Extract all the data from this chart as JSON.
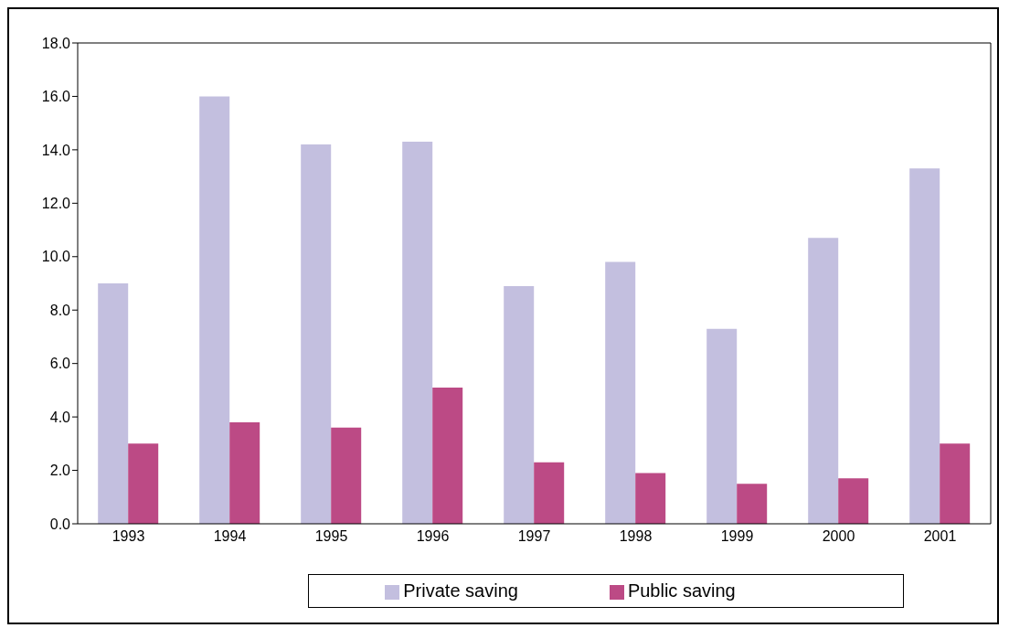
{
  "chart_data": {
    "type": "bar",
    "categories": [
      "1993",
      "1994",
      "1995",
      "1996",
      "1997",
      "1998",
      "1999",
      "2000",
      "2001"
    ],
    "series": [
      {
        "name": "Private saving",
        "color": "#c3bfdf",
        "values": [
          9.0,
          16.0,
          14.2,
          14.3,
          8.9,
          9.8,
          7.3,
          10.7,
          13.3
        ]
      },
      {
        "name": "Public saving",
        "color": "#bc4a85",
        "values": [
          3.0,
          3.8,
          3.6,
          5.1,
          2.3,
          1.9,
          1.5,
          1.7,
          3.0
        ]
      }
    ],
    "ylim": [
      0,
      18
    ],
    "yticks": [
      {
        "value": 0,
        "label": "0.0"
      },
      {
        "value": 2,
        "label": "2.0"
      },
      {
        "value": 4,
        "label": "4.0"
      },
      {
        "value": 6,
        "label": "6.0"
      },
      {
        "value": 8,
        "label": "8.0"
      },
      {
        "value": 10,
        "label": "10.0"
      },
      {
        "value": 12,
        "label": "12.0"
      },
      {
        "value": 14,
        "label": "14.0"
      },
      {
        "value": 16,
        "label": "16.0"
      },
      {
        "value": 18,
        "label": "18.0"
      }
    ],
    "legend": "bottom"
  }
}
